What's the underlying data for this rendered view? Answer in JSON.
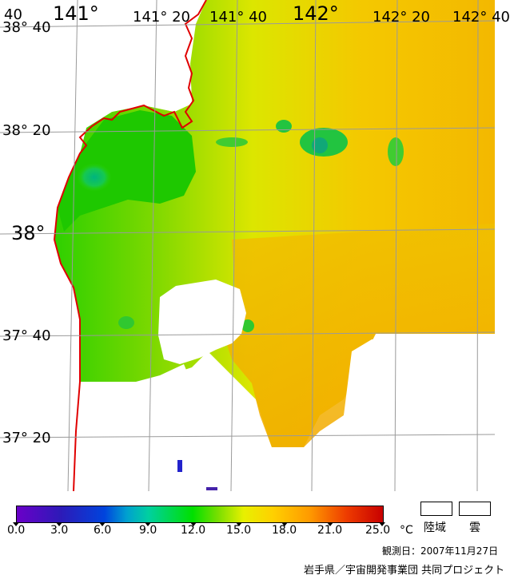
{
  "map": {
    "lon_labels": [
      "141°",
      "141° 20",
      "141° 40",
      "142°",
      "142° 20",
      "142° 40"
    ],
    "lat_labels": [
      "38° 40",
      "38° 20",
      "38°",
      "37° 40",
      "37° 20"
    ],
    "corner_label": "40",
    "colors": {
      "coastline": "#e00000",
      "grid": "#9a9a9a",
      "land": "#ffffff",
      "cloud": "#ffffff",
      "warm": "#f6c000",
      "cool": "#2ed000"
    }
  },
  "legend": {
    "ticks": [
      "0.0",
      "3.0",
      "6.0",
      "9.0",
      "12.0",
      "15.0",
      "18.0",
      "21.0",
      "25.0"
    ],
    "unit": "°C",
    "land_label": "陸域",
    "cloud_label": "雲",
    "observation_date": "観測日：2007年11月27日",
    "credit": "岩手県／宇宙開発事業団 共同プロジェクト"
  }
}
